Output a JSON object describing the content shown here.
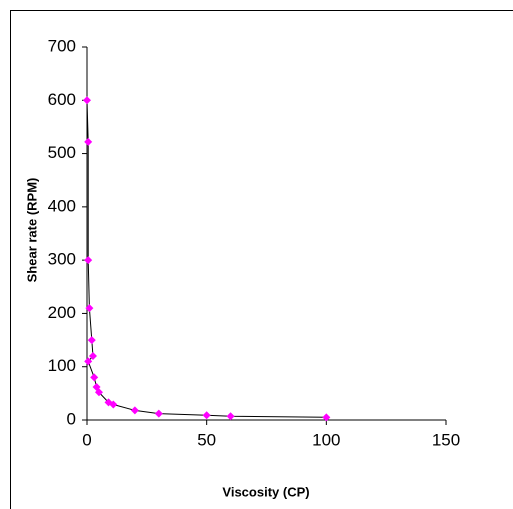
{
  "chart_data": {
    "type": "line",
    "xlabel": "Viscosity (CP)",
    "ylabel": "Shear rate (RPM)",
    "x": [
      0,
      0.5,
      0.5,
      1,
      2,
      2.5,
      0.5,
      3,
      4,
      5,
      9,
      11,
      20,
      30,
      50,
      60,
      100
    ],
    "series": [
      {
        "name": "Shear rate",
        "color": "#ff00ff",
        "line_color": "#000000",
        "values": [
          600,
          522,
          300,
          210,
          150,
          120,
          110,
          80,
          62,
          52,
          33,
          29,
          18,
          12,
          9,
          7,
          5
        ]
      }
    ],
    "xlim": [
      0,
      150
    ],
    "xticks": [
      0,
      50,
      100,
      150
    ],
    "ylim": [
      0,
      700
    ],
    "yticks": [
      0,
      100,
      200,
      300,
      400,
      500,
      600,
      700
    ],
    "grid": false
  }
}
